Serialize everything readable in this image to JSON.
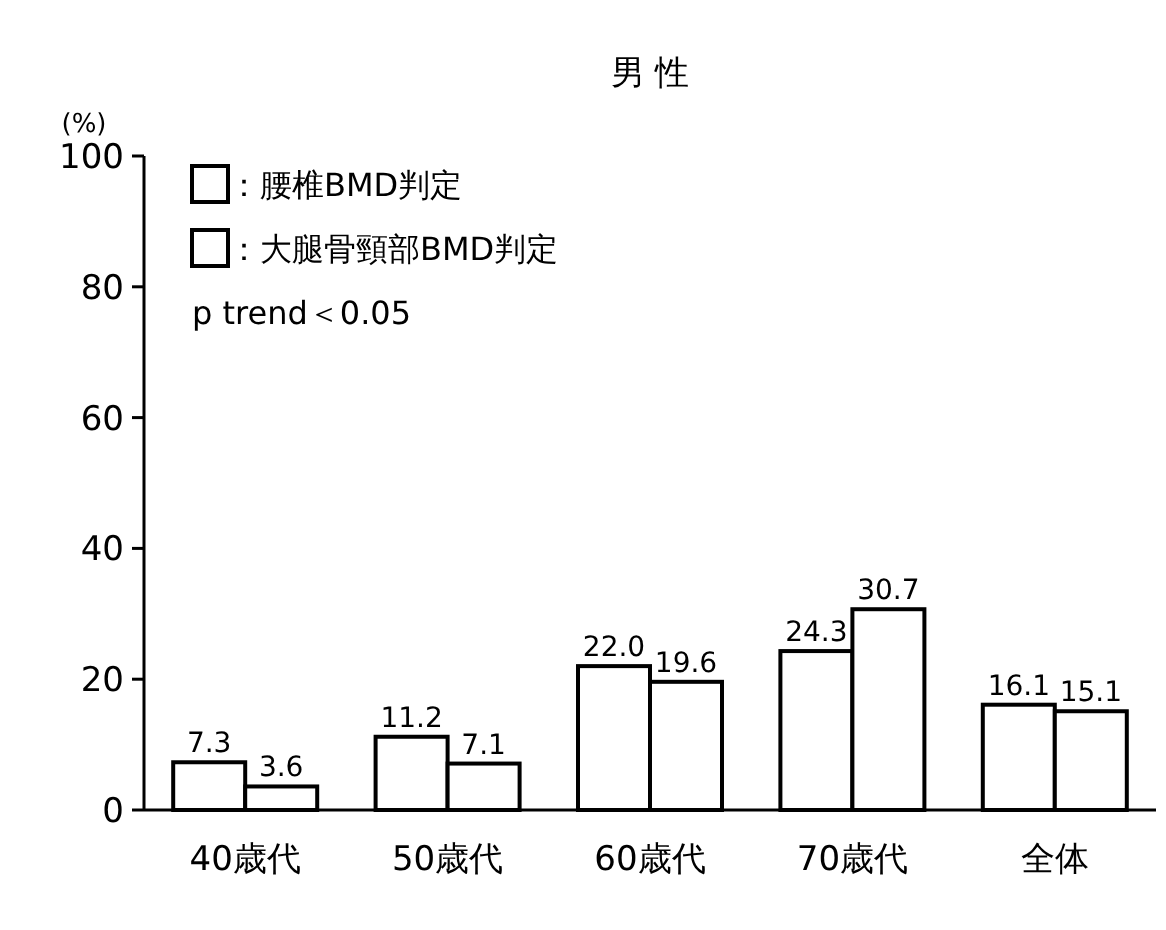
{
  "chart_data": {
    "type": "bar",
    "title": "男 性",
    "ylabel": "(%)",
    "categories": [
      "40歳代",
      "50歳代",
      "60歳代",
      "70歳代",
      "全体"
    ],
    "series": [
      {
        "name": "：腰椎BMD判定",
        "color": "#ffffff",
        "values": [
          7.3,
          11.2,
          22.0,
          24.3,
          16.1
        ],
        "value_labels": [
          "7.3",
          "11.2",
          "22.0",
          "24.3",
          "16.1"
        ]
      },
      {
        "name": "：大腿骨頸部BMD判定",
        "color": "#ffffff",
        "values": [
          3.6,
          7.1,
          19.6,
          30.7,
          15.1
        ],
        "value_labels": [
          "3.6",
          "7.1",
          "19.6",
          "30.7",
          "15.1"
        ]
      }
    ],
    "ylim": [
      0,
      100
    ],
    "yticks": [
      0,
      20,
      40,
      60,
      80,
      100
    ],
    "grid": false,
    "legend": "top left",
    "annotations": [
      "p trend＜0.05"
    ]
  }
}
